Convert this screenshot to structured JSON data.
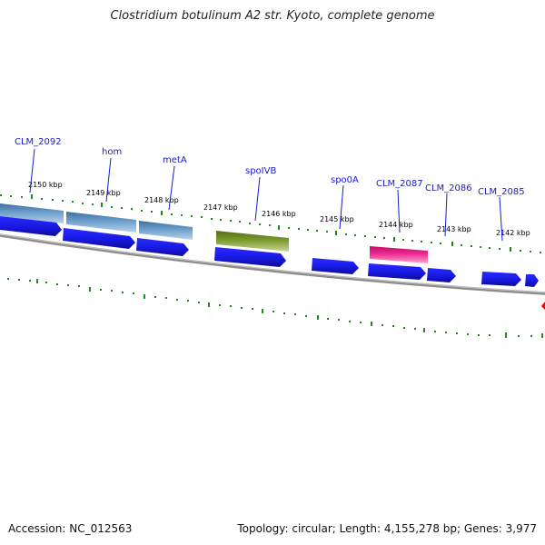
{
  "title": "Clostridium botulinum A2 str. Kyoto, complete genome",
  "footer": {
    "accession": "Accession: NC_012563",
    "summary": "Topology: circular; Length: 4,155,278 bp; Genes: 3,977"
  },
  "colors": {
    "gene_feature": "#1a1ae6",
    "label_text": "#1a1ad0",
    "cds_hom_group": "#4f86b8",
    "cds_spoIVB": "#6b8e23",
    "cds_CLM_2087": "#e8157f",
    "backbone": "#8c8c8c",
    "tick": "#1f8a1f",
    "marker": "#ff0000"
  },
  "kbp_ticks": [
    "2150 kbp",
    "2149 kbp",
    "2148 kbp",
    "2147 kbp",
    "2146 kbp",
    "2145 kbp",
    "2144 kbp",
    "2143 kbp",
    "2142 kbp"
  ],
  "gene_labels": [
    "CLM_2092",
    "hom",
    "metA",
    "spoIVB",
    "spo0A",
    "CLM_2087",
    "CLM_2086",
    "CLM_2085"
  ]
}
